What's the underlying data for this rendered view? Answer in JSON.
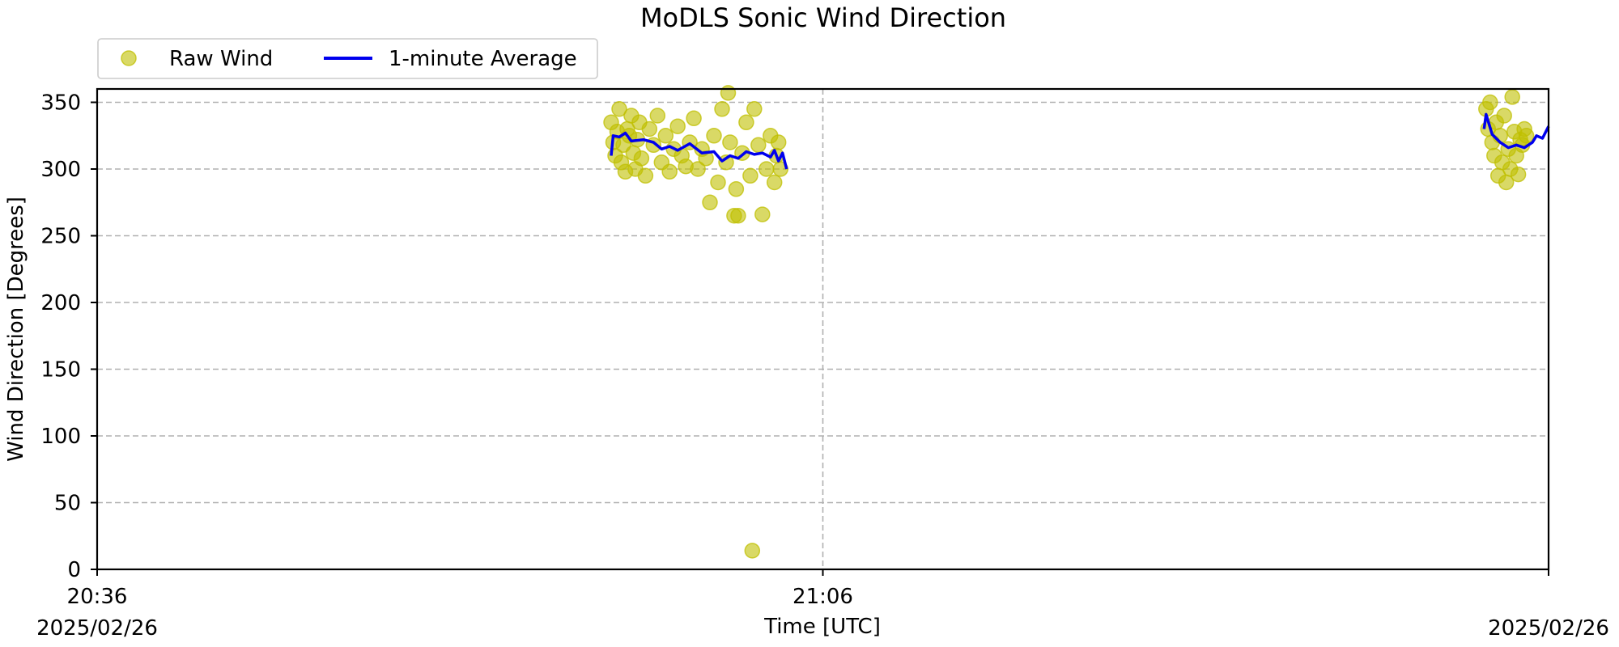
{
  "chart_data": {
    "type": "scatter",
    "title": "MoDLS Sonic Wind Direction",
    "xlabel": "Time [UTC]",
    "ylabel": "Wind Direction [Degrees]",
    "x_axis": {
      "type": "time",
      "range": [
        "2025-02-26 20:36",
        "2025-02-26 21:36"
      ],
      "ticks": [
        "20:36",
        "21:06",
        "21:36"
      ],
      "tick_labels": [
        "20:36",
        "21:06",
        ""
      ],
      "date_labels": [
        "2025/02/26",
        "2025/02/26"
      ]
    },
    "ylim": [
      0,
      360
    ],
    "yticks": [
      0,
      50,
      100,
      150,
      200,
      250,
      300,
      350
    ],
    "grid": true,
    "legend": {
      "placement": "top-left outside",
      "entries": [
        "Raw Wind",
        "1-minute Average"
      ]
    },
    "colors": {
      "raw": "#bfbf00",
      "average": "#0000ee"
    },
    "series": [
      {
        "name": "Raw Wind",
        "kind": "scatter",
        "points": [
          [
            "2025-02-26 20:57:15",
            335
          ],
          [
            "2025-02-26 20:57:20",
            320
          ],
          [
            "2025-02-26 20:57:25",
            310
          ],
          [
            "2025-02-26 20:57:30",
            328
          ],
          [
            "2025-02-26 20:57:35",
            345
          ],
          [
            "2025-02-26 20:57:40",
            305
          ],
          [
            "2025-02-26 20:57:45",
            318
          ],
          [
            "2025-02-26 20:57:50",
            298
          ],
          [
            "2025-02-26 20:57:55",
            330
          ],
          [
            "2025-02-26 20:58:00",
            325
          ],
          [
            "2025-02-26 20:58:05",
            340
          ],
          [
            "2025-02-26 20:58:10",
            312
          ],
          [
            "2025-02-26 20:58:15",
            300
          ],
          [
            "2025-02-26 20:58:20",
            322
          ],
          [
            "2025-02-26 20:58:25",
            335
          ],
          [
            "2025-02-26 20:58:30",
            308
          ],
          [
            "2025-02-26 20:58:40",
            295
          ],
          [
            "2025-02-26 20:58:50",
            330
          ],
          [
            "2025-02-26 20:59:00",
            318
          ],
          [
            "2025-02-26 20:59:10",
            340
          ],
          [
            "2025-02-26 20:59:20",
            305
          ],
          [
            "2025-02-26 20:59:30",
            325
          ],
          [
            "2025-02-26 20:59:40",
            298
          ],
          [
            "2025-02-26 20:59:50",
            315
          ],
          [
            "2025-02-26 21:00:00",
            332
          ],
          [
            "2025-02-26 21:00:10",
            310
          ],
          [
            "2025-02-26 21:00:20",
            302
          ],
          [
            "2025-02-26 21:00:30",
            320
          ],
          [
            "2025-02-26 21:00:40",
            338
          ],
          [
            "2025-02-26 21:00:50",
            300
          ],
          [
            "2025-02-26 21:01:00",
            315
          ],
          [
            "2025-02-26 21:01:10",
            308
          ],
          [
            "2025-02-26 21:01:20",
            275
          ],
          [
            "2025-02-26 21:01:30",
            325
          ],
          [
            "2025-02-26 21:01:40",
            290
          ],
          [
            "2025-02-26 21:01:50",
            345
          ],
          [
            "2025-02-26 21:02:00",
            305
          ],
          [
            "2025-02-26 21:02:05",
            357
          ],
          [
            "2025-02-26 21:02:10",
            320
          ],
          [
            "2025-02-26 21:02:20",
            265
          ],
          [
            "2025-02-26 21:02:25",
            285
          ],
          [
            "2025-02-26 21:02:30",
            265
          ],
          [
            "2025-02-26 21:02:40",
            312
          ],
          [
            "2025-02-26 21:02:50",
            335
          ],
          [
            "2025-02-26 21:03:00",
            295
          ],
          [
            "2025-02-26 21:03:05",
            14
          ],
          [
            "2025-02-26 21:03:10",
            345
          ],
          [
            "2025-02-26 21:03:20",
            318
          ],
          [
            "2025-02-26 21:03:30",
            266
          ],
          [
            "2025-02-26 21:03:40",
            300
          ],
          [
            "2025-02-26 21:03:50",
            325
          ],
          [
            "2025-02-26 21:04:00",
            290
          ],
          [
            "2025-02-26 21:04:05",
            310
          ],
          [
            "2025-02-26 21:04:10",
            320
          ],
          [
            "2025-02-26 21:04:15",
            300
          ],
          [
            "2025-02-26 21:33:25",
            345
          ],
          [
            "2025-02-26 21:33:30",
            330
          ],
          [
            "2025-02-26 21:33:35",
            350
          ],
          [
            "2025-02-26 21:33:40",
            320
          ],
          [
            "2025-02-26 21:33:45",
            310
          ],
          [
            "2025-02-26 21:33:50",
            335
          ],
          [
            "2025-02-26 21:33:55",
            295
          ],
          [
            "2025-02-26 21:34:00",
            325
          ],
          [
            "2025-02-26 21:34:05",
            305
          ],
          [
            "2025-02-26 21:34:10",
            340
          ],
          [
            "2025-02-26 21:34:15",
            290
          ],
          [
            "2025-02-26 21:34:20",
            315
          ],
          [
            "2025-02-26 21:34:25",
            300
          ],
          [
            "2025-02-26 21:34:30",
            354
          ],
          [
            "2025-02-26 21:34:35",
            328
          ],
          [
            "2025-02-26 21:34:40",
            310
          ],
          [
            "2025-02-26 21:34:45",
            296
          ],
          [
            "2025-02-26 21:34:50",
            322
          ],
          [
            "2025-02-26 21:34:55",
            318
          ],
          [
            "2025-02-26 21:35:00",
            330
          ],
          [
            "2025-02-26 21:35:05",
            325
          ]
        ]
      },
      {
        "name": "1-minute Average",
        "kind": "line",
        "segments": [
          [
            [
              "2025-02-26 20:57:15",
              310
            ],
            [
              "2025-02-26 20:57:20",
              325
            ],
            [
              "2025-02-26 20:57:35",
              324
            ],
            [
              "2025-02-26 20:57:50",
              327
            ],
            [
              "2025-02-26 20:58:05",
              321
            ],
            [
              "2025-02-26 20:58:35",
              322
            ],
            [
              "2025-02-26 20:59:00",
              320
            ],
            [
              "2025-02-26 20:59:20",
              315
            ],
            [
              "2025-02-26 20:59:40",
              317
            ],
            [
              "2025-02-26 21:00:00",
              314
            ],
            [
              "2025-02-26 21:00:30",
              319
            ],
            [
              "2025-02-26 21:01:00",
              312
            ],
            [
              "2025-02-26 21:01:30",
              313
            ],
            [
              "2025-02-26 21:01:50",
              306
            ],
            [
              "2025-02-26 21:02:10",
              310
            ],
            [
              "2025-02-26 21:02:30",
              308
            ],
            [
              "2025-02-26 21:02:50",
              313
            ],
            [
              "2025-02-26 21:03:10",
              311
            ],
            [
              "2025-02-26 21:03:30",
              312
            ],
            [
              "2025-02-26 21:03:50",
              309
            ],
            [
              "2025-02-26 21:04:00",
              314
            ],
            [
              "2025-02-26 21:04:10",
              306
            ],
            [
              "2025-02-26 21:04:20",
              312
            ],
            [
              "2025-02-26 21:04:30",
              300
            ]
          ],
          [
            [
              "2025-02-26 21:33:20",
              330
            ],
            [
              "2025-02-26 21:33:25",
              341
            ],
            [
              "2025-02-26 21:33:40",
              326
            ],
            [
              "2025-02-26 21:34:00",
              320
            ],
            [
              "2025-02-26 21:34:20",
              316
            ],
            [
              "2025-02-26 21:34:40",
              318
            ],
            [
              "2025-02-26 21:35:00",
              316
            ],
            [
              "2025-02-26 21:35:20",
              320
            ],
            [
              "2025-02-26 21:35:30",
              325
            ],
            [
              "2025-02-26 21:35:45",
              323
            ],
            [
              "2025-02-26 21:36:00",
              332
            ]
          ]
        ]
      }
    ]
  }
}
